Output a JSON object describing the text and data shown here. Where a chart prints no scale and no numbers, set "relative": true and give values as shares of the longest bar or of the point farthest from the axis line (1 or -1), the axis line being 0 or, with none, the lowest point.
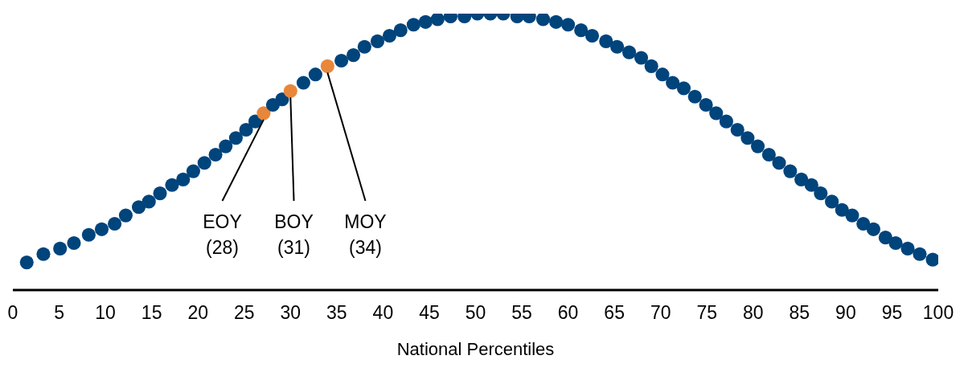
{
  "chart_data": {
    "type": "scatter",
    "relative": true,
    "xlabel": "National Percentiles",
    "xlim": [
      0,
      100
    ],
    "xticks": [
      0,
      5,
      10,
      15,
      20,
      25,
      30,
      35,
      40,
      45,
      50,
      55,
      60,
      65,
      70,
      75,
      80,
      85,
      90,
      95,
      100
    ],
    "marker": "circle",
    "grid": false,
    "legend": false,
    "x": [
      1.5,
      3.3,
      5.1,
      6.6,
      8.2,
      9.6,
      11.0,
      12.2,
      13.6,
      14.7,
      15.9,
      17.2,
      18.4,
      19.5,
      20.7,
      21.9,
      23.0,
      24.1,
      25.2,
      26.2,
      27.1,
      28.1,
      29.1,
      30.0,
      31.4,
      32.7,
      34.0,
      35.5,
      36.8,
      38.0,
      39.4,
      40.7,
      41.9,
      43.3,
      44.6,
      45.9,
      47.3,
      48.8,
      50.2,
      51.6,
      53.0,
      54.5,
      55.8,
      57.3,
      58.7,
      60.0,
      61.4,
      62.6,
      64.1,
      65.3,
      66.6,
      67.9,
      69.0,
      70.2,
      71.3,
      72.5,
      73.7,
      74.9,
      76.0,
      77.1,
      78.3,
      79.4,
      80.5,
      81.7,
      82.8,
      84.0,
      85.2,
      86.3,
      87.3,
      88.5,
      89.6,
      90.7,
      91.9,
      93.0,
      94.3,
      95.4,
      96.7,
      98.0,
      99.4
    ],
    "values": [
      0.1,
      0.13,
      0.15,
      0.17,
      0.2,
      0.22,
      0.24,
      0.27,
      0.3,
      0.32,
      0.35,
      0.38,
      0.4,
      0.43,
      0.46,
      0.49,
      0.52,
      0.55,
      0.58,
      0.61,
      0.64,
      0.67,
      0.69,
      0.72,
      0.75,
      0.78,
      0.81,
      0.83,
      0.85,
      0.88,
      0.9,
      0.92,
      0.94,
      0.96,
      0.97,
      0.98,
      0.99,
      0.99,
      1,
      1,
      1,
      0.99,
      0.99,
      0.98,
      0.97,
      0.96,
      0.94,
      0.92,
      0.9,
      0.88,
      0.86,
      0.84,
      0.81,
      0.78,
      0.75,
      0.73,
      0.7,
      0.67,
      0.64,
      0.61,
      0.58,
      0.55,
      0.52,
      0.49,
      0.46,
      0.43,
      0.4,
      0.38,
      0.35,
      0.32,
      0.29,
      0.27,
      0.24,
      0.22,
      0.19,
      0.17,
      0.15,
      0.13,
      0.11
    ],
    "colors": [
      "#00447c",
      "#00447c",
      "#00447c",
      "#00447c",
      "#00447c",
      "#00447c",
      "#00447c",
      "#00447c",
      "#00447c",
      "#00447c",
      "#00447c",
      "#00447c",
      "#00447c",
      "#00447c",
      "#00447c",
      "#00447c",
      "#00447c",
      "#00447c",
      "#00447c",
      "#00447c",
      "#e8873c",
      "#00447c",
      "#00447c",
      "#e8873c",
      "#00447c",
      "#00447c",
      "#e8873c",
      "#00447c",
      "#00447c",
      "#00447c",
      "#00447c",
      "#00447c",
      "#00447c",
      "#00447c",
      "#00447c",
      "#00447c",
      "#00447c",
      "#00447c",
      "#00447c",
      "#00447c",
      "#00447c",
      "#00447c",
      "#00447c",
      "#00447c",
      "#00447c",
      "#00447c",
      "#00447c",
      "#00447c",
      "#00447c",
      "#00447c",
      "#00447c",
      "#00447c",
      "#00447c",
      "#00447c",
      "#00447c",
      "#00447c",
      "#00447c",
      "#00447c",
      "#00447c",
      "#00447c",
      "#00447c",
      "#00447c",
      "#00447c",
      "#00447c",
      "#00447c",
      "#00447c",
      "#00447c",
      "#00447c",
      "#00447c",
      "#00447c",
      "#00447c",
      "#00447c",
      "#00447c",
      "#00447c",
      "#00447c",
      "#00447c",
      "#00447c",
      "#00447c",
      "#00447c"
    ],
    "annotations": [
      {
        "text": "EOY (28)",
        "x": 27.1,
        "y": 0.64
      },
      {
        "text": "BOY (31)",
        "x": 30.0,
        "y": 0.72
      },
      {
        "text": "MOY (34)",
        "x": 34.0,
        "y": 0.81
      }
    ]
  }
}
